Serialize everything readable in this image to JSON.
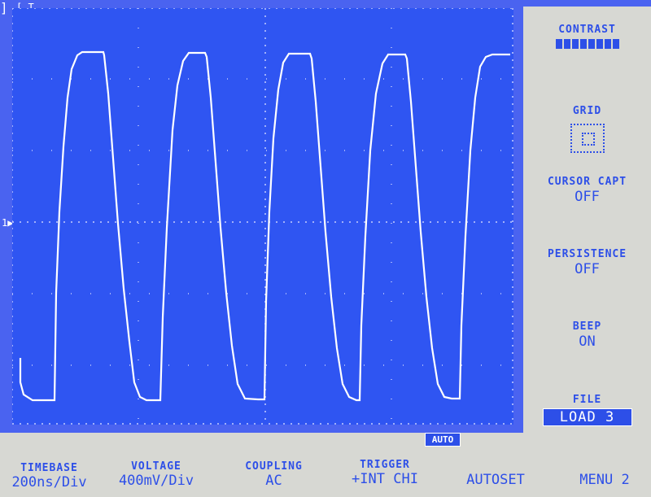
{
  "scope": {
    "trigger_marker": "[ T",
    "trigger_end_marker": "]",
    "channel_marker": "1▶",
    "auto_badge": "AUTO"
  },
  "side_menu": {
    "contrast": {
      "label": "CONTRAST"
    },
    "grid": {
      "label": "GRID"
    },
    "cursor_capt": {
      "label": "CURSOR CAPT",
      "value": "OFF"
    },
    "persistence": {
      "label": "PERSISTENCE",
      "value": "OFF"
    },
    "beep": {
      "label": "BEEP",
      "value": "ON"
    },
    "file": {
      "label": "FILE",
      "value": "LOAD 3"
    }
  },
  "bottom": {
    "timebase": {
      "label": "TIMEBASE",
      "value": "200ns/Div"
    },
    "voltage": {
      "label": "VOLTAGE",
      "value": "400mV/Div"
    },
    "coupling": {
      "label": "COUPLING",
      "value": "AC"
    },
    "trigger": {
      "label": "TRIGGER",
      "value": "+INT CHI"
    },
    "autoset": {
      "value": "AUTOSET"
    },
    "menu": {
      "value": "MENU 2"
    }
  },
  "colors": {
    "screen_bg": "#2f55f2",
    "trace": "#ffffff",
    "panel_bg": "#d7d8d3",
    "panel_text": "#2d4fe8"
  }
}
